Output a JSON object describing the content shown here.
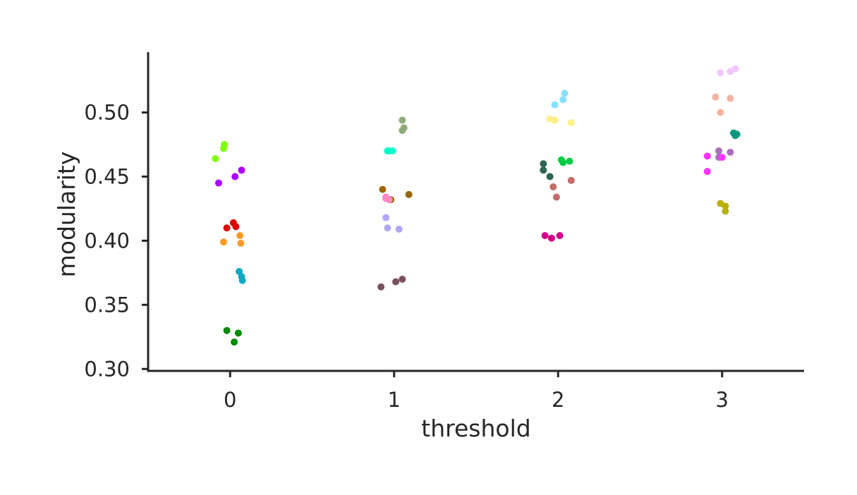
{
  "chart_data": {
    "type": "scatter",
    "title": "",
    "xlabel": "threshold",
    "ylabel": "modularity",
    "categories": [
      "0",
      "1",
      "2",
      "3"
    ],
    "xlim": [
      -0.5,
      3.5
    ],
    "ylim": [
      0.2985,
      0.547
    ],
    "yticks": [
      "0.30",
      "0.35",
      "0.40",
      "0.45",
      "0.50"
    ],
    "grid": false,
    "legend": "none",
    "points": [
      {
        "x": -0.09,
        "y": 0.464,
        "color": "#7fff00"
      },
      {
        "x": -0.04,
        "y": 0.472,
        "color": "#7fff00"
      },
      {
        "x": -0.035,
        "y": 0.475,
        "color": "#7fff00"
      },
      {
        "x": -0.07,
        "y": 0.445,
        "color": "#aa00ff"
      },
      {
        "x": 0.03,
        "y": 0.45,
        "color": "#aa00ff"
      },
      {
        "x": 0.07,
        "y": 0.455,
        "color": "#aa00ff"
      },
      {
        "x": -0.02,
        "y": 0.41,
        "color": "#dd0000"
      },
      {
        "x": 0.02,
        "y": 0.414,
        "color": "#dd0000"
      },
      {
        "x": 0.035,
        "y": 0.411,
        "color": "#dd0000"
      },
      {
        "x": -0.04,
        "y": 0.399,
        "color": "#ff9a26"
      },
      {
        "x": 0.06,
        "y": 0.404,
        "color": "#ff9a26"
      },
      {
        "x": 0.065,
        "y": 0.398,
        "color": "#ff9a26"
      },
      {
        "x": 0.055,
        "y": 0.376,
        "color": "#10a8c0"
      },
      {
        "x": 0.07,
        "y": 0.372,
        "color": "#10a8c0"
      },
      {
        "x": 0.075,
        "y": 0.369,
        "color": "#10a8c0"
      },
      {
        "x": -0.02,
        "y": 0.33,
        "color": "#008800"
      },
      {
        "x": 0.05,
        "y": 0.328,
        "color": "#008800"
      },
      {
        "x": 0.025,
        "y": 0.321,
        "color": "#008800"
      },
      {
        "x": 1.05,
        "y": 0.486,
        "color": "#8faa7a"
      },
      {
        "x": 1.05,
        "y": 0.494,
        "color": "#8faa7a"
      },
      {
        "x": 1.06,
        "y": 0.488,
        "color": "#8faa7a"
      },
      {
        "x": 0.96,
        "y": 0.47,
        "color": "#00ffcc"
      },
      {
        "x": 0.97,
        "y": 0.47,
        "color": "#00ffcc"
      },
      {
        "x": 0.99,
        "y": 0.47,
        "color": "#00ffcc"
      },
      {
        "x": 0.93,
        "y": 0.44,
        "color": "#996600"
      },
      {
        "x": 0.98,
        "y": 0.432,
        "color": "#996600"
      },
      {
        "x": 1.09,
        "y": 0.436,
        "color": "#996600"
      },
      {
        "x": 0.95,
        "y": 0.433,
        "color": "#ff88c6"
      },
      {
        "x": 0.95,
        "y": 0.434,
        "color": "#ff88c6"
      },
      {
        "x": 0.97,
        "y": 0.432,
        "color": "#ff88c6"
      },
      {
        "x": 0.95,
        "y": 0.418,
        "color": "#b0a8f0"
      },
      {
        "x": 0.96,
        "y": 0.41,
        "color": "#b0a8f0"
      },
      {
        "x": 1.03,
        "y": 0.409,
        "color": "#b0a8f0"
      },
      {
        "x": 0.92,
        "y": 0.364,
        "color": "#7a5060"
      },
      {
        "x": 1.01,
        "y": 0.368,
        "color": "#7a5060"
      },
      {
        "x": 1.05,
        "y": 0.37,
        "color": "#7a5060"
      },
      {
        "x": 2.04,
        "y": 0.515,
        "color": "#88e0ff"
      },
      {
        "x": 2.03,
        "y": 0.51,
        "color": "#88e0ff"
      },
      {
        "x": 1.98,
        "y": 0.506,
        "color": "#88e0ff"
      },
      {
        "x": 1.95,
        "y": 0.495,
        "color": "#fff088"
      },
      {
        "x": 1.98,
        "y": 0.494,
        "color": "#fff088"
      },
      {
        "x": 2.08,
        "y": 0.492,
        "color": "#fff088"
      },
      {
        "x": 1.91,
        "y": 0.46,
        "color": "#2e6650"
      },
      {
        "x": 1.91,
        "y": 0.455,
        "color": "#2e6650"
      },
      {
        "x": 1.95,
        "y": 0.45,
        "color": "#2e6650"
      },
      {
        "x": 2.02,
        "y": 0.463,
        "color": "#00cc44"
      },
      {
        "x": 2.03,
        "y": 0.461,
        "color": "#00cc44"
      },
      {
        "x": 2.07,
        "y": 0.462,
        "color": "#00cc44"
      },
      {
        "x": 1.97,
        "y": 0.442,
        "color": "#c46a68"
      },
      {
        "x": 1.99,
        "y": 0.434,
        "color": "#c46a68"
      },
      {
        "x": 2.08,
        "y": 0.447,
        "color": "#c46a68"
      },
      {
        "x": 1.92,
        "y": 0.404,
        "color": "#d4008a"
      },
      {
        "x": 1.96,
        "y": 0.402,
        "color": "#d4008a"
      },
      {
        "x": 2.01,
        "y": 0.404,
        "color": "#d4008a"
      },
      {
        "x": 3.05,
        "y": 0.532,
        "color": "#f0c8ff"
      },
      {
        "x": 3.08,
        "y": 0.534,
        "color": "#f0c8ff"
      },
      {
        "x": 2.99,
        "y": 0.531,
        "color": "#f0c8ff"
      },
      {
        "x": 2.96,
        "y": 0.512,
        "color": "#f4b4a4"
      },
      {
        "x": 3.05,
        "y": 0.511,
        "color": "#f4b4a4"
      },
      {
        "x": 2.99,
        "y": 0.5,
        "color": "#f4b4a4"
      },
      {
        "x": 3.07,
        "y": 0.484,
        "color": "#009980"
      },
      {
        "x": 3.08,
        "y": 0.482,
        "color": "#009980"
      },
      {
        "x": 3.09,
        "y": 0.483,
        "color": "#009980"
      },
      {
        "x": 2.98,
        "y": 0.47,
        "color": "#a870b8"
      },
      {
        "x": 2.98,
        "y": 0.465,
        "color": "#a870b8"
      },
      {
        "x": 3.05,
        "y": 0.469,
        "color": "#a870b8"
      },
      {
        "x": 2.91,
        "y": 0.466,
        "color": "#ff33ff"
      },
      {
        "x": 3.0,
        "y": 0.465,
        "color": "#ff33ff"
      },
      {
        "x": 2.91,
        "y": 0.454,
        "color": "#ff33ff"
      },
      {
        "x": 2.99,
        "y": 0.429,
        "color": "#b8b000"
      },
      {
        "x": 3.02,
        "y": 0.427,
        "color": "#b8b000"
      },
      {
        "x": 3.02,
        "y": 0.423,
        "color": "#b8b000"
      }
    ]
  }
}
